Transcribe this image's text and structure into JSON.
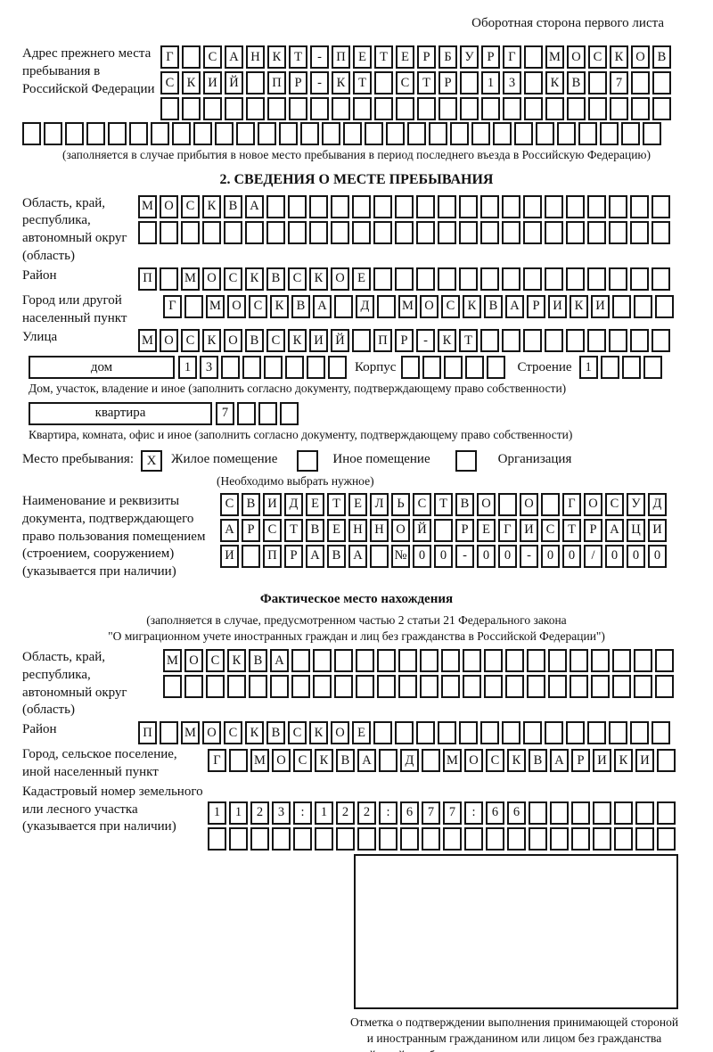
{
  "page": {
    "header_note": "Оборотная сторона первого листа"
  },
  "section1": {
    "prev_address_label": "Адрес прежнего места пребывания в Российской Федерации",
    "caption": "(заполняется в случае прибытия в новое место пребывания в период последнего въезда в Российскую Федерацию)"
  },
  "section2": {
    "title": "2. СВЕДЕНИЯ О МЕСТЕ ПРЕБЫВАНИЯ",
    "oblast_label": "Область, край, республика, автономный округ (область)",
    "raion_label": "Район",
    "gorod_label": "Город или другой населенный пункт",
    "ulitsa_label": "Улица",
    "dom_box_label": "дом",
    "korpus_label": "Корпус",
    "stroenie_label": "Строение",
    "dom_caption": "Дом, участок, владение и иное (заполнить согласно документу, подтверждающему право собственности)",
    "kvartira_box_label": "квартира",
    "kvartira_caption": "Квартира, комната, офис и иное (заполнить согласно документу, подтверждающему право собственности)",
    "place_label": "Место пребывания:",
    "checked_mark": "X",
    "option_zhiloe": "Жилое помещение",
    "option_inoe": "Иное помещение",
    "option_org": "Организация",
    "options_note": "(Необходимо выбрать нужное)",
    "doc_label": "Наименование и реквизиты документа, подтверждающего право пользования помещением (строением, сооружением) (указывается при наличии)"
  },
  "section3": {
    "title": "Фактическое место нахождения",
    "note_line1": "(заполняется в случае, предусмотренном частью 2 статьи 21 Федерального закона",
    "note_line2": "\"О миграционном учете иностранных граждан и лиц без гражданства в Российской Федерации\")",
    "oblast_label": "Область, край, республика, автономный округ (область)",
    "raion_label": "Район",
    "gorod_label": "Город, сельское поселение, иной населенный пункт",
    "kadastr_label": "Кадастровый номер земельного или лесного участка (указывается при наличии)",
    "stamp_caption": "Отметка о подтверждении выполнения принимающей стороной и иностранным гражданином или лицом без гражданства действий, необходимых для его постановки на учет по месту пребывания"
  },
  "cell_rows": {
    "addr1": {
      "cells": 24,
      "text": "Г САНКТ-ПЕТЕРБУРГ МОСКОВ"
    },
    "addr2": {
      "cells": 24,
      "text": "СКИЙ ПР-КТ СТР 13 КВ 7"
    },
    "addr3": {
      "cells": 24,
      "text": ""
    },
    "addr4": {
      "cells": 30,
      "text": ""
    },
    "oblast1": {
      "cells": 25,
      "text": "МОСКВА"
    },
    "oblast2": {
      "cells": 25,
      "text": ""
    },
    "raion": {
      "cells": 25,
      "text": "П МОСКВСКОЕ"
    },
    "gorod": {
      "cells": 24,
      "text": "Г МОСКВА Д МОСКВАРИКИ"
    },
    "ulitsa": {
      "cells": 25,
      "text": "МОСКОВСКИЙ ПР-КТ"
    },
    "dom": {
      "cells": 8,
      "text": "13"
    },
    "korpus": {
      "cells": 5,
      "text": ""
    },
    "stroenie": {
      "cells": 4,
      "text": "1"
    },
    "kvartira": {
      "cells": 4,
      "text": "7"
    },
    "doc1": {
      "cells": 21,
      "text": "СВИДЕТЕЛЬСТВО О ГОСУД"
    },
    "doc2": {
      "cells": 21,
      "text": "АРСТВЕННОЙ РЕГИСТРАЦИ"
    },
    "doc3": {
      "cells": 21,
      "text": "И ПРАВА №00-00-00/000"
    },
    "f_oblast1": {
      "cells": 24,
      "text": "МОСКВА"
    },
    "f_oblast2": {
      "cells": 24,
      "text": ""
    },
    "f_raion": {
      "cells": 25,
      "text": "П МОСКВСКОЕ"
    },
    "f_gorod": {
      "cells": 22,
      "text": "Г МОСКВА Д МОСКВАРИКИ"
    },
    "kadastr1": {
      "cells": 22,
      "text": "1123:122:677:66"
    },
    "kadastr2": {
      "cells": 22,
      "text": ""
    }
  }
}
